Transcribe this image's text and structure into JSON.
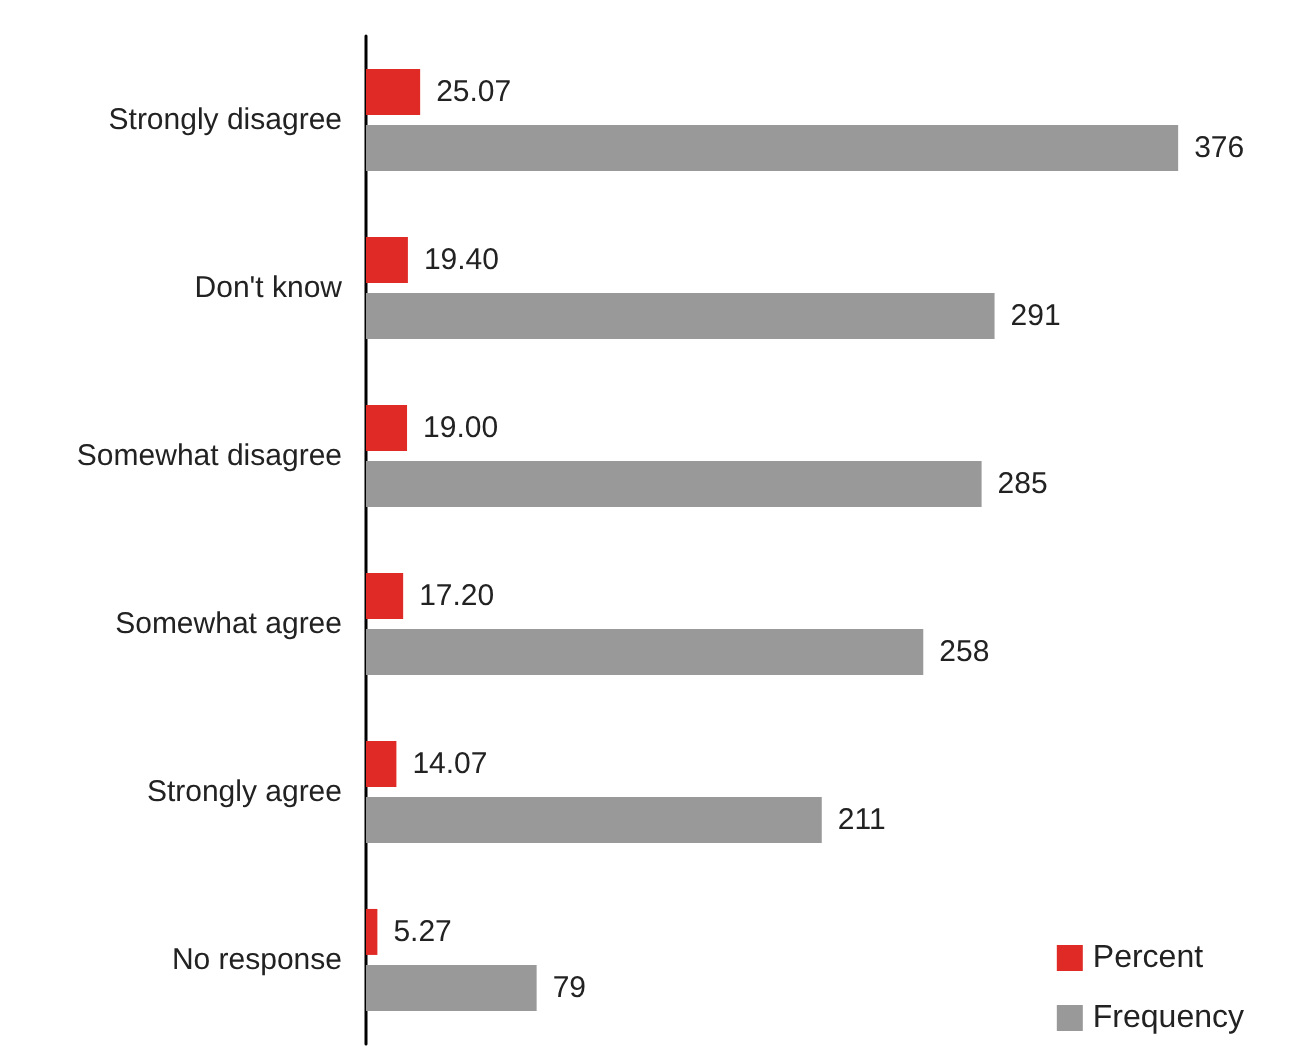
{
  "chart_data": {
    "type": "bar",
    "orientation": "horizontal",
    "categories": [
      "Strongly disagree",
      "Don't know",
      "Somewhat disagree",
      "Somewhat agree",
      "Strongly agree",
      "No response"
    ],
    "series": [
      {
        "name": "Percent",
        "color": "#e02a26",
        "values": [
          25.07,
          19.4,
          19.0,
          17.2,
          14.07,
          5.27
        ],
        "value_labels": [
          "25.07",
          "19.40",
          "19.00",
          "17.20",
          "14.07",
          "5.27"
        ]
      },
      {
        "name": "Frequency",
        "color": "#999999",
        "values": [
          376,
          291,
          285,
          258,
          211,
          79
        ]
      }
    ],
    "data_labels": true,
    "legend": "bottom right",
    "tick_labels": "y"
  }
}
